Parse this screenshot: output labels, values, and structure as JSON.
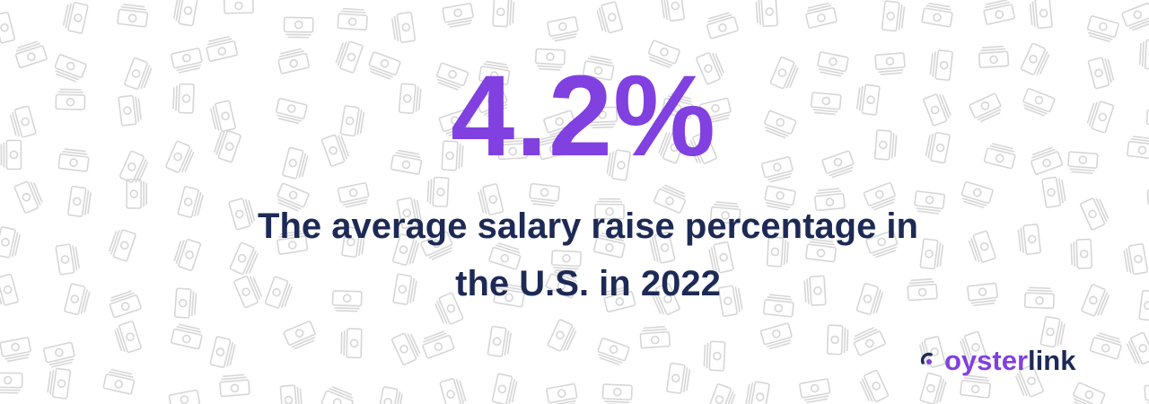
{
  "stat": {
    "value": "4.2%",
    "caption_lines": [
      "The average salary raise percentage in",
      "the U.S. in 2022"
    ]
  },
  "logo": {
    "part1": "oyster",
    "part2": "link"
  }
}
